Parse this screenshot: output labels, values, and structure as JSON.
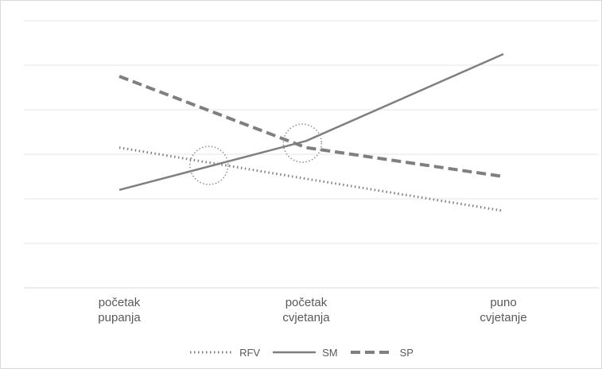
{
  "chart_data": {
    "type": "line",
    "categories": [
      [
        "početak",
        "pupanja"
      ],
      [
        "početak",
        "cvjetanja"
      ],
      [
        "puno",
        "cvjetanje"
      ]
    ],
    "ylim": [
      0,
      6
    ],
    "grid": true,
    "legend_position": "bottom",
    "series": [
      {
        "name": "RFV",
        "values": [
          3.15,
          2.45,
          1.73
        ],
        "color": "#7f7f7f",
        "dash": "dotted"
      },
      {
        "name": "SM",
        "values": [
          2.2,
          3.3,
          5.25
        ],
        "color": "#7f7f7f",
        "dash": "solid"
      },
      {
        "name": "SP",
        "values": [
          4.75,
          3.15,
          2.5
        ],
        "color": "#7f7f7f",
        "dash": "dashed"
      }
    ],
    "annotations": [
      {
        "type": "circle",
        "x": 0.48,
        "y": 2.75
      },
      {
        "type": "circle",
        "x": 0.98,
        "y": 3.25
      }
    ]
  }
}
